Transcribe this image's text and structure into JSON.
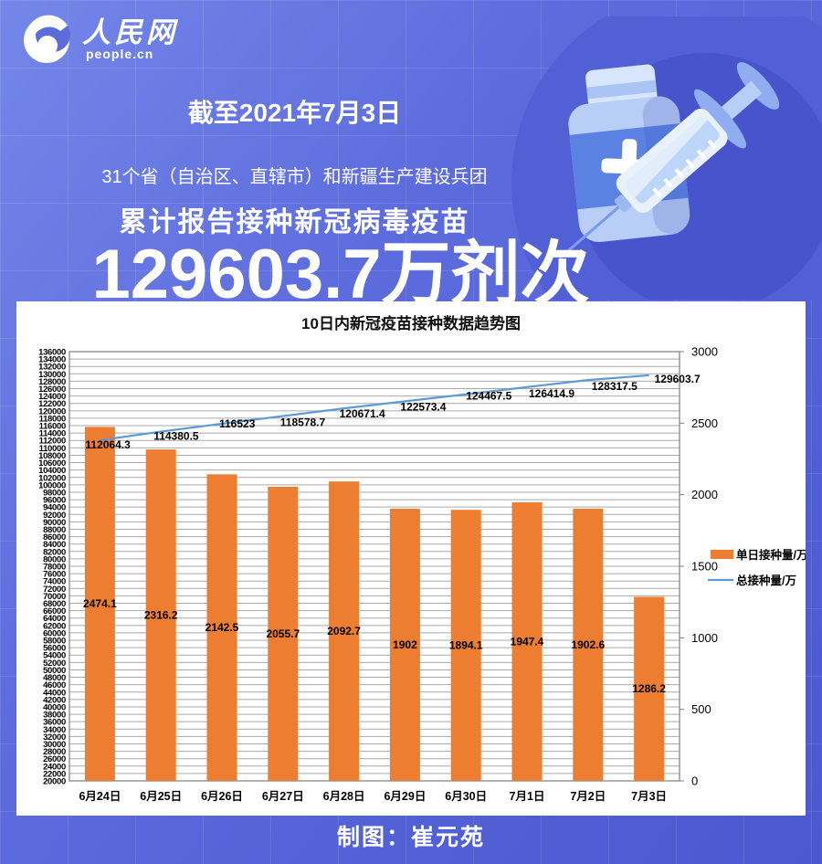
{
  "logo": {
    "name": "人民网",
    "subtitle": "people.cn"
  },
  "header": {
    "date_line": "截至2021年7月3日",
    "scope_line": "31个省（自治区、直辖市）和新疆生产建设兵团",
    "title_line": "累计报告接种新冠病毒疫苗",
    "headline_number": "129603.7万剂次"
  },
  "chart_data": {
    "type": "bar",
    "title": "10日内新冠疫苗接种数据趋势图",
    "categories": [
      "6月24日",
      "6月25日",
      "6月26日",
      "6月27日",
      "6月28日",
      "6月29日",
      "6月30日",
      "7月1日",
      "7月2日",
      "7月3日"
    ],
    "series": [
      {
        "name": "单日接种量/万",
        "type": "bar",
        "axis": "right",
        "color": "#ED7D31",
        "values": [
          2474.1,
          2316.2,
          2142.5,
          2055.7,
          2092.7,
          1902,
          1894.1,
          1947.4,
          1902.6,
          1286.2
        ]
      },
      {
        "name": "总接种量/万",
        "type": "line",
        "axis": "left",
        "color": "#5B9BD5",
        "values": [
          112064.3,
          114380.5,
          116523,
          118578.7,
          120671.4,
          122573.4,
          124467.5,
          126414.9,
          128317.5,
          129603.7
        ]
      }
    ],
    "left_axis": {
      "min": 20000,
      "max": 136000,
      "step": 2000
    },
    "right_axis": {
      "min": 0,
      "max": 3000,
      "step": 500
    },
    "grid": true,
    "legend_position": "right",
    "gridline_color": "#a9a9a9",
    "border_color": "#7f7f7f"
  },
  "credit": "制图：崔元苑"
}
